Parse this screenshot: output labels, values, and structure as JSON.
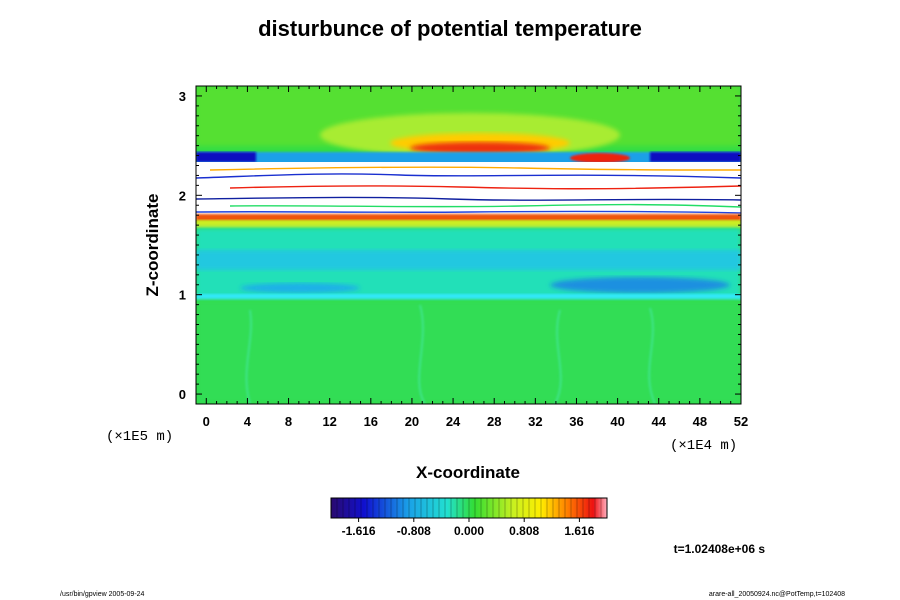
{
  "chart_data": {
    "type": "heatmap",
    "title": "disturbunce of potential temperature",
    "xlabel": "X-coordinate",
    "ylabel": "Z-coordinate",
    "x_unit": "(×1E4 m)",
    "y_unit": "(×1E5 m)",
    "xlim": [
      -1,
      52
    ],
    "ylim": [
      -0.1,
      3.1
    ],
    "x_ticks": [
      0,
      4,
      8,
      12,
      16,
      20,
      24,
      28,
      32,
      36,
      40,
      44,
      48,
      52
    ],
    "y_ticks": [
      0,
      1,
      2,
      3
    ],
    "colorbar": {
      "ticks": [
        "-1.616",
        "-0.808",
        "0.000",
        "0.808",
        "1.616"
      ],
      "tick_values": [
        -1.616,
        -0.808,
        0.0,
        0.808,
        1.616
      ],
      "range": [
        -2.02,
        2.02
      ]
    },
    "bands": [
      {
        "z0": -0.1,
        "z1": 0.9,
        "value": 0.15
      },
      {
        "z0": 0.9,
        "z1": 1.0,
        "value": -0.35
      },
      {
        "z0": 1.0,
        "z1": 1.6,
        "value": -0.5
      },
      {
        "z0": 1.6,
        "z1": 1.75,
        "value": 0.25
      },
      {
        "z0": 1.75,
        "z1": 2.3,
        "value": "saturated"
      },
      {
        "z0": 2.3,
        "z1": 2.4,
        "value": -1.4
      },
      {
        "z0": 2.4,
        "z1": 3.1,
        "value": 0.2
      }
    ],
    "time_label": "t=1.02408e+06 s"
  },
  "footer": {
    "left": "/usr/bin/gpview 2005-09-24",
    "right": "arare-all_20050924.nc@PotTemp,t=102408"
  },
  "colors": {
    "background_field": "#33dd33",
    "saturated": "#ffffff"
  }
}
